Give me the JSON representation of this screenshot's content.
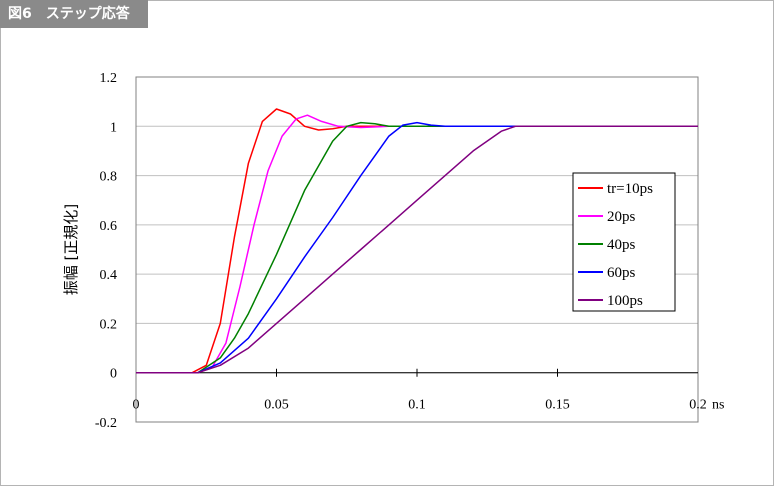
{
  "figure": {
    "label": "図6　ステップ応答"
  },
  "chart_data": {
    "type": "line",
    "title": "",
    "xlabel": "",
    "x_unit": "ns",
    "ylabel": "振幅 [正規化]",
    "xlim": [
      0,
      0.2
    ],
    "ylim": [
      -0.2,
      1.2
    ],
    "x_ticks": [
      0,
      0.05,
      0.1,
      0.15,
      0.2
    ],
    "x_tick_labels": [
      "0",
      "0.05",
      "0.1",
      "0.15",
      "0.2"
    ],
    "y_ticks": [
      1.2,
      1,
      0.8,
      0.6,
      0.4,
      0.2,
      0,
      -0.2
    ],
    "y_tick_labels": [
      "1.2",
      "1",
      "0.8",
      "0.6",
      "0.4",
      "0.2",
      "0",
      "-0.2"
    ],
    "grid": "horizontal",
    "legend_position": "right",
    "series": [
      {
        "name": "tr=10ps",
        "color": "#ff0000",
        "x": [
          0,
          0.02,
          0.025,
          0.03,
          0.035,
          0.04,
          0.045,
          0.05,
          0.055,
          0.06,
          0.065,
          0.07,
          0.075,
          0.08,
          0.09,
          0.1,
          0.2
        ],
        "y": [
          0,
          0,
          0.03,
          0.2,
          0.55,
          0.85,
          1.02,
          1.07,
          1.05,
          1.0,
          0.985,
          0.99,
          1.0,
          1.0,
          1.0,
          1.0,
          1.0
        ]
      },
      {
        "name": "20ps",
        "color": "#ff00ff",
        "x": [
          0,
          0.022,
          0.027,
          0.032,
          0.037,
          0.042,
          0.047,
          0.052,
          0.057,
          0.061,
          0.066,
          0.072,
          0.08,
          0.09,
          0.2
        ],
        "y": [
          0,
          0,
          0.02,
          0.12,
          0.35,
          0.6,
          0.82,
          0.96,
          1.03,
          1.045,
          1.02,
          1.0,
          0.995,
          1.0,
          1.0
        ]
      },
      {
        "name": "40ps",
        "color": "#008000",
        "x": [
          0,
          0.022,
          0.03,
          0.035,
          0.04,
          0.05,
          0.06,
          0.07,
          0.075,
          0.08,
          0.085,
          0.09,
          0.1,
          0.2
        ],
        "y": [
          0,
          0,
          0.06,
          0.14,
          0.24,
          0.48,
          0.74,
          0.94,
          1.0,
          1.015,
          1.01,
          1.0,
          1.0,
          1.0
        ]
      },
      {
        "name": "60ps",
        "color": "#0000ff",
        "x": [
          0,
          0.022,
          0.03,
          0.04,
          0.05,
          0.06,
          0.07,
          0.08,
          0.09,
          0.095,
          0.1,
          0.105,
          0.11,
          0.2
        ],
        "y": [
          0,
          0,
          0.04,
          0.14,
          0.3,
          0.47,
          0.63,
          0.8,
          0.96,
          1.005,
          1.015,
          1.005,
          1.0,
          1.0
        ]
      },
      {
        "name": "100ps",
        "color": "#800080",
        "x": [
          0,
          0.022,
          0.03,
          0.04,
          0.05,
          0.06,
          0.07,
          0.08,
          0.09,
          0.1,
          0.11,
          0.12,
          0.13,
          0.135,
          0.14,
          0.2
        ],
        "y": [
          0,
          0,
          0.03,
          0.1,
          0.2,
          0.3,
          0.4,
          0.5,
          0.6,
          0.7,
          0.8,
          0.9,
          0.98,
          1.0,
          1.0,
          1.0
        ]
      }
    ]
  }
}
